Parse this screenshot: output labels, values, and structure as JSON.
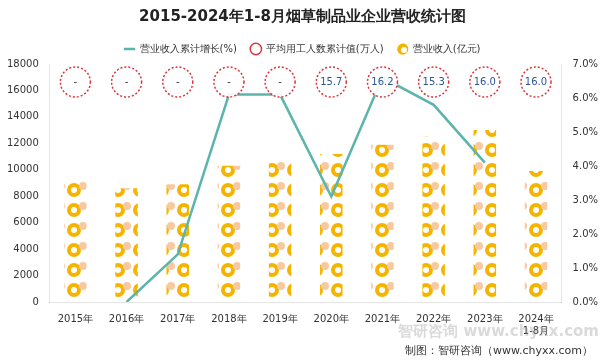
{
  "chart_data": {
    "type": "bar",
    "title": "2015-2024年1-8月烟草制品业企业营收统计图",
    "categories": [
      "2015年",
      "2016年",
      "2017年",
      "2018年",
      "2019年",
      "2020年",
      "2021年",
      "2022年",
      "2023年",
      "2024年1-8月"
    ],
    "series": [
      {
        "name": "营业收入(亿元)",
        "type": "bar",
        "color": "#f5b400",
        "values": [
          9100,
          8600,
          8900,
          10300,
          10900,
          11200,
          11900,
          12500,
          13000,
          9900
        ]
      },
      {
        "name": "平均用工人数累计值(万人)",
        "type": "scatter",
        "color": "#d9363e",
        "marker": "circle",
        "line_style": "dotted",
        "values": [
          null,
          null,
          null,
          null,
          null,
          15.7,
          16.2,
          15.3,
          16.0,
          16.0
        ],
        "value_labels": [
          "-",
          "-",
          "-",
          "-",
          "-",
          "15.7",
          "16.2",
          "15.3",
          "16.0",
          "16.0"
        ]
      },
      {
        "name": "营业收入累计增长(%)",
        "type": "line",
        "color": "#5bb5ad",
        "axis": "y2",
        "values": [
          null,
          0.0,
          1.4,
          6.1,
          6.1,
          3.1,
          6.6,
          5.8,
          4.1,
          null
        ]
      }
    ],
    "ylim": [
      0,
      18000
    ],
    "yticks": [
      0,
      2000,
      4000,
      6000,
      8000,
      10000,
      12000,
      14000,
      16000,
      18000
    ],
    "y2lim": [
      0,
      7.0
    ],
    "y2ticks": [
      {
        "value": 0,
        "label": "0.0%"
      },
      {
        "value": 1,
        "label": "1.0%"
      },
      {
        "value": 2,
        "label": "2.0%"
      },
      {
        "value": 3,
        "label": "3.0%"
      },
      {
        "value": 4,
        "label": "4.0%"
      },
      {
        "value": 5,
        "label": "5.0%"
      },
      {
        "value": 6,
        "label": "6.0%"
      },
      {
        "value": 7,
        "label": "7.0%"
      }
    ],
    "grid": false,
    "legend": "top",
    "annotations": [
      "制图：智研咨询（www.chyxx.com）",
      "智研咨询 www.chyxx.com"
    ]
  }
}
